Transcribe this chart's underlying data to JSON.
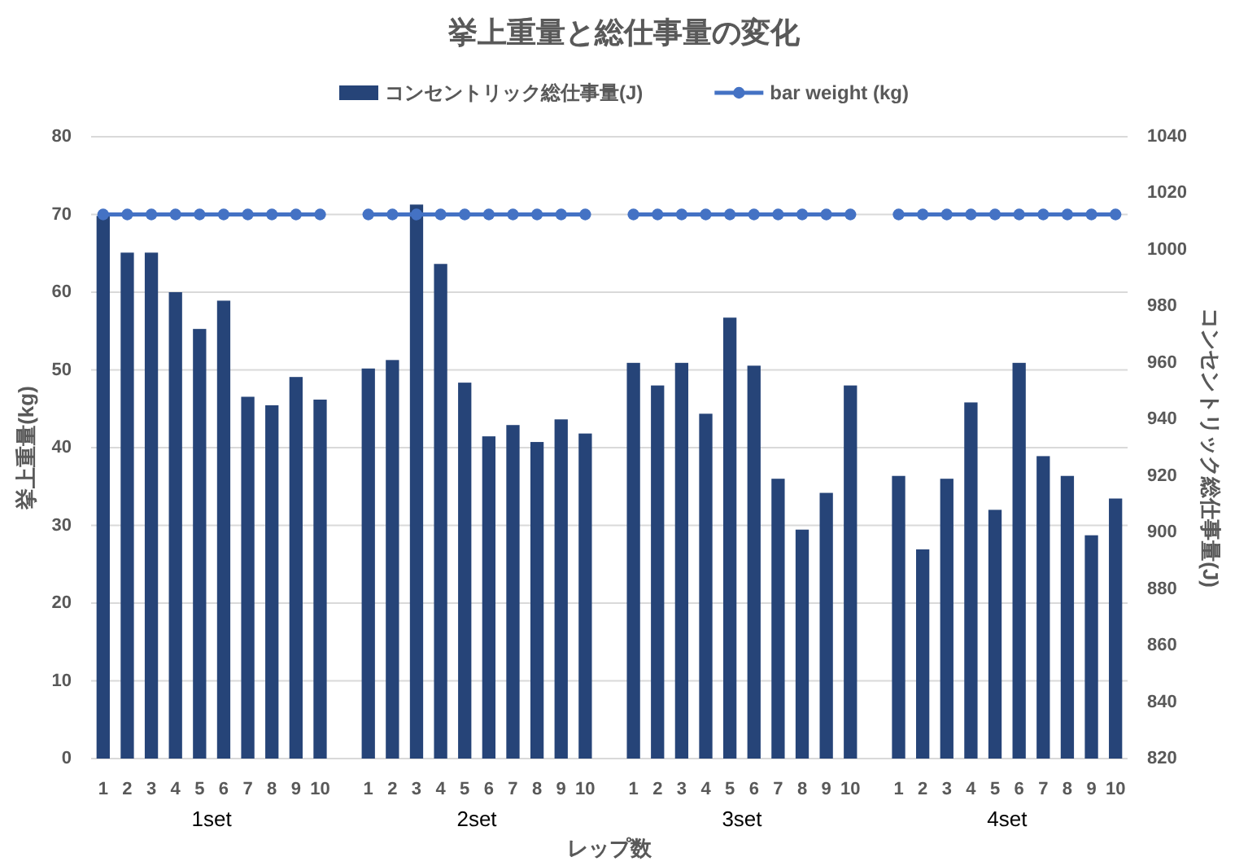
{
  "chart_data": {
    "type": "bar",
    "title": "挙上重量と総仕事量の変化",
    "xlabel": "レップ数",
    "ylabel": "挙上重量(kg)",
    "y2label": "コンセントリック総仕事量(J)",
    "annotations": [
      "1set",
      "2set",
      "3set",
      "4set"
    ],
    "categories": [
      "1",
      "2",
      "3",
      "4",
      "5",
      "6",
      "7",
      "8",
      "9",
      "10",
      null,
      "1",
      "2",
      "3",
      "4",
      "5",
      "6",
      "7",
      "8",
      "9",
      "10",
      null,
      "1",
      "2",
      "3",
      "4",
      "5",
      "6",
      "7",
      "8",
      "9",
      "10",
      null,
      "1",
      "2",
      "3",
      "4",
      "5",
      "6",
      "7",
      "8",
      "9",
      "10"
    ],
    "series": [
      {
        "name": "コンセントリック総仕事量(J)",
        "axis": "y2",
        "color": "#264478",
        "values": [
          1012,
          999,
          999,
          985,
          972,
          982,
          948,
          945,
          955,
          947,
          null,
          958,
          961,
          1016,
          995,
          953,
          934,
          938,
          932,
          940,
          935,
          null,
          960,
          952,
          960,
          942,
          976,
          959,
          919,
          901,
          914,
          952,
          null,
          920,
          894,
          919,
          946,
          908,
          960,
          927,
          920,
          899,
          912
        ]
      },
      {
        "name": "bar weight (kg)",
        "type": "line",
        "color": "#4472c4",
        "values": [
          70,
          70,
          70,
          70,
          70,
          70,
          70,
          70,
          70,
          70,
          null,
          70,
          70,
          70,
          70,
          70,
          70,
          70,
          70,
          70,
          70,
          null,
          70,
          70,
          70,
          70,
          70,
          70,
          70,
          70,
          70,
          70,
          null,
          70,
          70,
          70,
          70,
          70,
          70,
          70,
          70,
          70,
          70
        ]
      }
    ],
    "ylim": [
      0,
      80
    ],
    "yticks": [
      0,
      10,
      20,
      30,
      40,
      50,
      60,
      70,
      80
    ],
    "y2lim": [
      820,
      1040
    ],
    "y2ticks": [
      820,
      840,
      860,
      880,
      900,
      920,
      940,
      960,
      980,
      1000,
      1020,
      1040
    ],
    "grid": "y",
    "legend": "top",
    "marker": "circle",
    "line_style": "solid"
  }
}
